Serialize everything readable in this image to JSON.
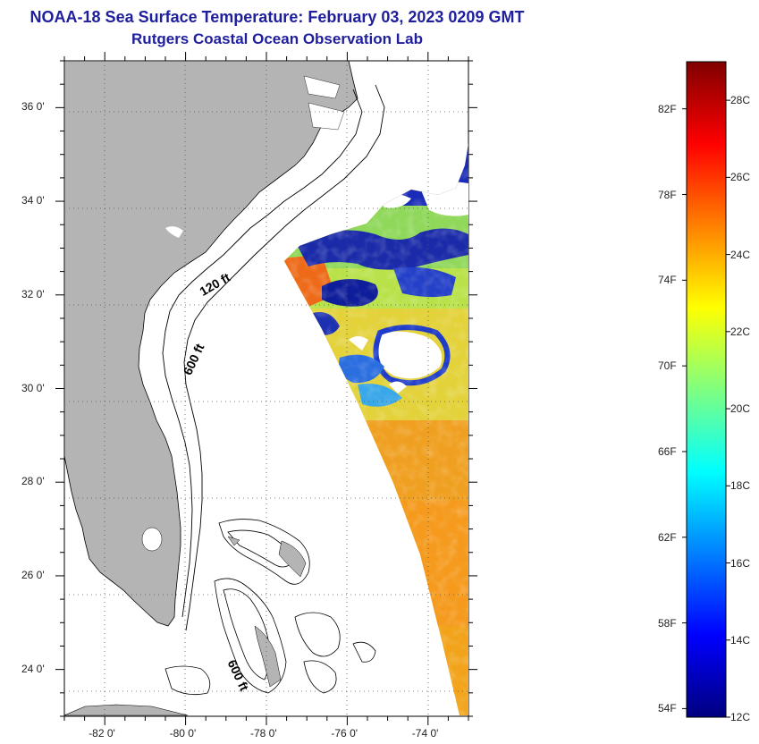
{
  "header": {
    "title": "NOAA-18 Sea Surface Temperature:  February 03, 2023 0209 GMT",
    "subtitle": "Rutgers Coastal Ocean Observation Lab"
  },
  "map": {
    "lat_range": [
      23.0,
      37.0
    ],
    "lon_range": [
      -83.0,
      -73.0
    ],
    "lat_ticks": [
      {
        "value": 24,
        "label": "24 0'"
      },
      {
        "value": 26,
        "label": "26 0'"
      },
      {
        "value": 28,
        "label": "28 0'"
      },
      {
        "value": 30,
        "label": "30 0'"
      },
      {
        "value": 32,
        "label": "32 0'"
      },
      {
        "value": 34,
        "label": "34 0'"
      },
      {
        "value": 36,
        "label": "36 0'"
      }
    ],
    "lon_ticks": [
      {
        "value": -82,
        "label": "-82 0'"
      },
      {
        "value": -80,
        "label": "-80 0'"
      },
      {
        "value": -78,
        "label": "-78 0'"
      },
      {
        "value": -76,
        "label": "-76 0'"
      },
      {
        "value": -74,
        "label": "-74 0'"
      }
    ],
    "grid": "dotted",
    "land_color": "#b4b4b4",
    "contours": [
      {
        "label": "120 ft"
      },
      {
        "label": "600 ft"
      },
      {
        "label": "600 ft"
      }
    ]
  },
  "colorbar": {
    "range_c": [
      12,
      29
    ],
    "fahrenheit_ticks": [
      {
        "value": 54,
        "label": "54F"
      },
      {
        "value": 58,
        "label": "58F"
      },
      {
        "value": 62,
        "label": "62F"
      },
      {
        "value": 66,
        "label": "66F"
      },
      {
        "value": 70,
        "label": "70F"
      },
      {
        "value": 74,
        "label": "74F"
      },
      {
        "value": 78,
        "label": "78F"
      },
      {
        "value": 82,
        "label": "82F"
      }
    ],
    "celsius_ticks": [
      {
        "value": 12,
        "label": "12C"
      },
      {
        "value": 14,
        "label": "14C"
      },
      {
        "value": 16,
        "label": "16C"
      },
      {
        "value": 18,
        "label": "18C"
      },
      {
        "value": 20,
        "label": "20C"
      },
      {
        "value": 22,
        "label": "22C"
      },
      {
        "value": 24,
        "label": "24C"
      },
      {
        "value": 26,
        "label": "26C"
      },
      {
        "value": 28,
        "label": "28C"
      }
    ],
    "stops": [
      "#00007f",
      "#0000ff",
      "#0080ff",
      "#00ffff",
      "#80ff80",
      "#ffff00",
      "#ff8000",
      "#ff0000",
      "#7f0000"
    ]
  }
}
